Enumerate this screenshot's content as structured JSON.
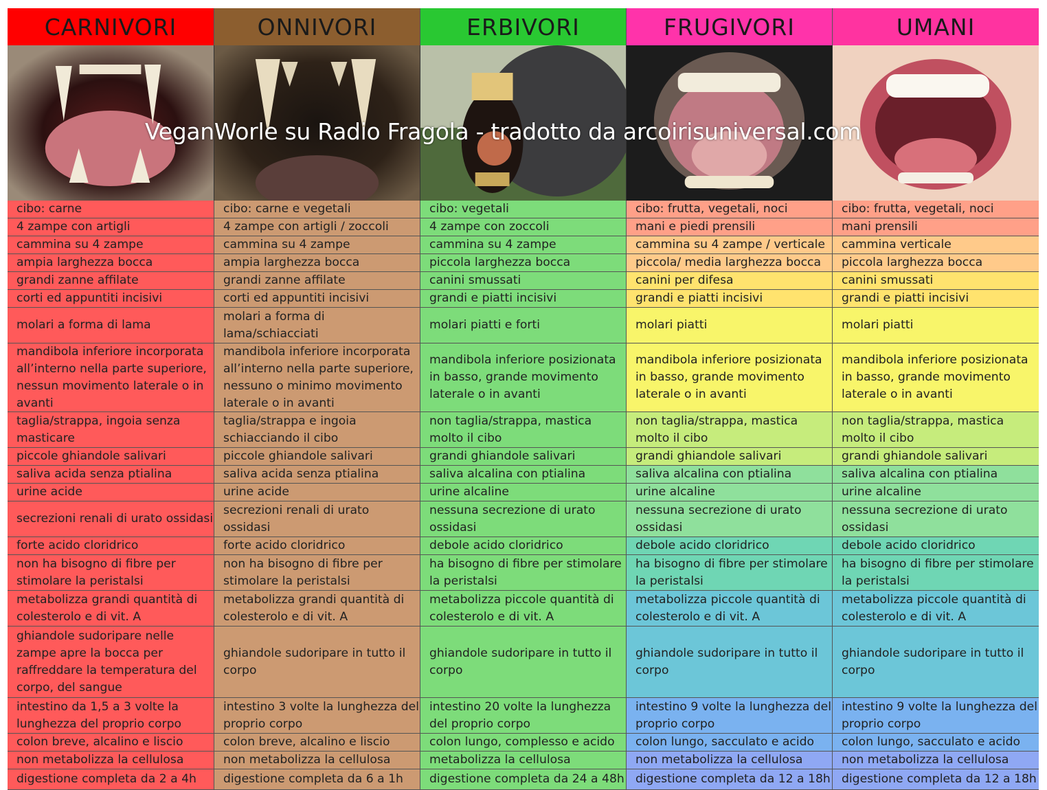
{
  "headers": [
    "CARNIVORI",
    "ONNIVORI",
    "ERBIVORI",
    "FRUGIVORI",
    "UMANI"
  ],
  "header_colors": [
    "#ff0000",
    "#8c5e2f",
    "#29c832",
    "#ff33aa",
    "#ff33a0"
  ],
  "photos": [
    {
      "icon": "carnivore-mouth-photo",
      "label": "carnivore-mouth"
    },
    {
      "icon": "omnivore-mouth-photo",
      "label": "omnivore-mouth"
    },
    {
      "icon": "herbivore-mouth-photo",
      "label": "herbivore-mouth"
    },
    {
      "icon": "frugivore-mouth-photo",
      "label": "frugivore-mouth"
    },
    {
      "icon": "human-mouth-photo",
      "label": "human-mouth"
    }
  ],
  "watermark": "VeganWorle su Radio Fragola - tradotto da arcoirisuniversal.com",
  "columns": [
    {
      "key": "carnivori",
      "cells": [
        "cibo: carne",
        "4 zampe con artigli",
        "cammina su 4 zampe",
        "ampia larghezza bocca",
        "grandi zanne affilate",
        "corti ed appuntiti incisivi",
        "molari a forma di lama",
        "mandibola inferiore incorporata all’interno nella parte superiore, nessun movimento laterale o in avanti",
        "taglia/strappa, ingoia senza masticare",
        "piccole ghiandole salivari",
        "saliva acida senza ptialina",
        "urine acide",
        "secrezioni renali di urato ossidasi",
        "forte acido cloridrico",
        "non ha bisogno di fibre per stimolare la peristalsi",
        "metabolizza grandi quantità di colesterolo e di vit. A",
        "ghiandole sudoripare nelle zampe apre la bocca per raffreddare la temperatura del corpo, del sangue",
        "intestino da 1,5 a 3 volte la lunghezza del proprio corpo",
        "colon breve, alcalino e liscio",
        "non metabolizza la cellulosa",
        "digestione completa da 2 a 4h"
      ]
    },
    {
      "key": "onnivori",
      "cells": [
        "cibo: carne e vegetali",
        "4 zampe con artigli / zoccoli",
        "cammina su 4 zampe",
        "ampia larghezza bocca",
        "grandi zanne affilate",
        "corti ed appuntiti incisivi",
        "molari a forma di lama/schiacciati",
        "mandibola inferiore incorporata all’interno nella parte superiore, nessuno o minimo movimento laterale o in avanti",
        "taglia/strappa e ingoia schiacciando il cibo",
        "piccole ghiandole salivari",
        "saliva acida senza ptialina",
        "urine acide",
        "secrezioni renali di urato ossidasi",
        "forte acido cloridrico",
        "non ha bisogno di fibre per stimolare la peristalsi",
        "metabolizza grandi quantità di colesterolo e di vit. A",
        "ghiandole sudoripare in tutto il corpo",
        "intestino 3 volte la lunghezza del proprio corpo",
        "colon breve, alcalino e liscio",
        "non metabolizza la cellulosa",
        "digestione completa da 6 a 1h"
      ]
    },
    {
      "key": "erbivori",
      "cells": [
        "cibo: vegetali",
        "4 zampe con zoccoli",
        "cammina su 4 zampe",
        "piccola larghezza bocca",
        "canini smussati",
        "grandi e piatti incisivi",
        "molari piatti e forti",
        "mandibola inferiore posizionata in basso, grande movimento laterale o in avanti",
        "non taglia/strappa, mastica molto il cibo",
        "grandi ghiandole salivari",
        "saliva alcalina con ptialina",
        "urine alcaline",
        "nessuna secrezione di urato ossidasi",
        "debole acido cloridrico",
        "ha bisogno di fibre per stimolare la peristalsi",
        "metabolizza piccole quantità di colesterolo e di vit. A",
        "ghiandole sudoripare in tutto il corpo",
        "intestino 20 volte la lunghezza del proprio corpo",
        "colon lungo, complesso e acido",
        "metabolizza la cellulosa",
        "digestione completa da 24 a 48h"
      ]
    },
    {
      "key": "frugivori",
      "cells": [
        "cibo: frutta, vegetali, noci",
        "mani e piedi prensili",
        "cammina su 4 zampe / verticale",
        "piccola/ media larghezza bocca",
        "canini per difesa",
        "grandi e piatti incisivi",
        "molari piatti",
        "mandibola inferiore posizionata in basso, grande movimento laterale o in avanti",
        "non taglia/strappa, mastica molto il cibo",
        "grandi ghiandole salivari",
        "saliva alcalina con ptialina",
        "urine alcaline",
        "nessuna secrezione di urato ossidasi",
        "debole acido cloridrico",
        "ha bisogno di fibre per stimolare la peristalsi",
        "metabolizza piccole quantità di colesterolo e di vit. A",
        "ghiandole sudoripare in tutto il corpo",
        "intestino 9 volte la lunghezza del proprio corpo",
        "colon lungo, sacculato e acido",
        "non metabolizza la cellulosa",
        "digestione completa da 12 a 18h"
      ]
    },
    {
      "key": "umani",
      "cells": [
        "cibo: frutta, vegetali, noci",
        "mani prensili",
        "cammina verticale",
        "piccola larghezza bocca",
        "canini smussati",
        "grandi e piatti incisivi",
        "molari piatti",
        "mandibola inferiore posizionata in basso, grande movimento laterale o in avanti",
        "non taglia/strappa, mastica molto il cibo",
        "grandi ghiandole salivari",
        "saliva alcalina con ptialina",
        "urine alcaline",
        "nessuna secrezione di urato ossidasi",
        "debole acido cloridrico",
        "ha bisogno di fibre per stimolare la peristalsi",
        "metabolizza piccole quantità di colesterolo e di vit. A",
        "ghiandole sudoripare in tutto il corpo",
        "intestino 9 volte la lunghezza del proprio corpo",
        "colon lungo, sacculato e acido",
        "non metabolizza la cellulosa",
        "digestione completa da 12 a 18h"
      ]
    }
  ],
  "row_colors": {
    "carnivori": "#ff5a5a",
    "onnivori": "#cc9a72",
    "erbivori": "#7ddc7a",
    "frugivori_gradient": [
      "#ffa088",
      "#ffca8a",
      "#ffe36e",
      "#f8f56a",
      "#c6ec7c",
      "#8fe09c",
      "#6fd6b4",
      "#6cc6d8",
      "#7ab2f0",
      "#8fa8f4"
    ],
    "umani_gradient": [
      "#ffa088",
      "#ffca8a",
      "#ffe36e",
      "#f8f56a",
      "#c6ec7c",
      "#8fe09c",
      "#6fd6b4",
      "#6cc6d8",
      "#7ab2f0",
      "#8fa8f4"
    ]
  }
}
